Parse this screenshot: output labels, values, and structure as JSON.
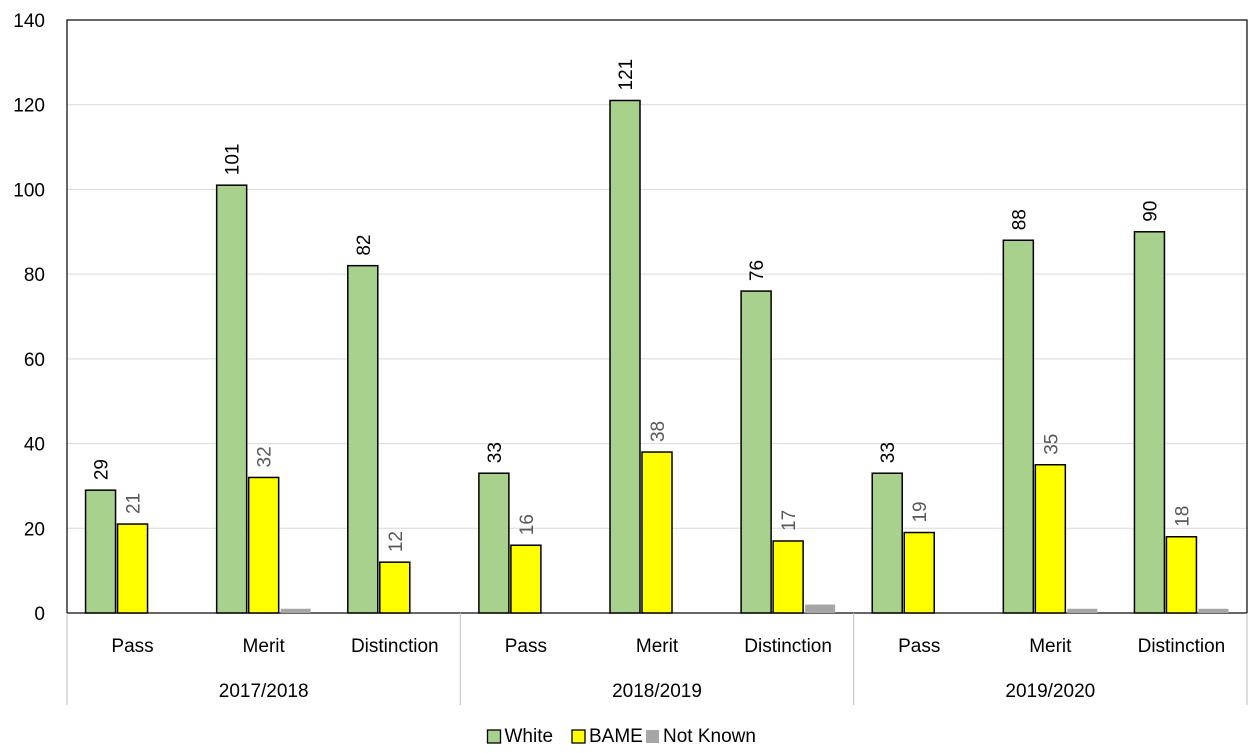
{
  "chart_data": {
    "type": "bar",
    "title": "",
    "xlabel": "",
    "ylabel": "",
    "ylim": [
      0,
      140
    ],
    "yticks": [
      0,
      20,
      40,
      60,
      80,
      100,
      120,
      140
    ],
    "grid": true,
    "legend_position": "bottom",
    "groups": [
      {
        "name": "2017/2018",
        "categories": [
          "Pass",
          "Merit",
          "Distinction"
        ]
      },
      {
        "name": "2018/2019",
        "categories": [
          "Pass",
          "Merit",
          "Distinction"
        ]
      },
      {
        "name": "2019/2020",
        "categories": [
          "Pass",
          "Merit",
          "Distinction"
        ]
      }
    ],
    "series": [
      {
        "name": "White",
        "color": "#a9d18e",
        "values": [
          29,
          101,
          82,
          33,
          121,
          76,
          33,
          88,
          90
        ],
        "labels": [
          "29",
          "101",
          "82",
          "33",
          "121",
          "76",
          "33",
          "88",
          "90"
        ]
      },
      {
        "name": "BAME",
        "color": "#ffff00",
        "values": [
          21,
          32,
          12,
          16,
          38,
          17,
          19,
          35,
          18
        ],
        "labels": [
          "21",
          "32",
          "12",
          "16",
          "38",
          "17",
          "19",
          "35",
          "18"
        ]
      },
      {
        "name": "Not Known",
        "color": "#a6a6a6",
        "values": [
          0,
          1,
          0,
          0,
          0,
          2,
          0,
          1,
          1
        ],
        "labels": []
      }
    ]
  }
}
